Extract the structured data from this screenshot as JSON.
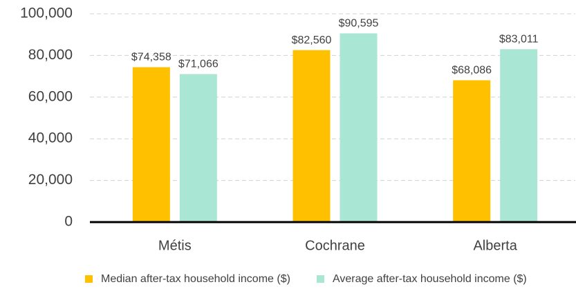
{
  "chart_data": {
    "type": "bar",
    "categories": [
      "Métis",
      "Cochrane",
      "Alberta"
    ],
    "series": [
      {
        "name": "Median after-tax household income ($)",
        "color": "#ffc000",
        "values": [
          74358,
          82560,
          68086
        ],
        "value_labels": [
          "$74,358",
          "$82,560",
          "$68,086"
        ]
      },
      {
        "name": "Average after-tax household income ($)",
        "color": "#a9e6d3",
        "values": [
          71066,
          90595,
          83011
        ],
        "value_labels": [
          "$71,066",
          "$90,595",
          "$83,011"
        ]
      }
    ],
    "ylim": [
      0,
      100000
    ],
    "yticks": [
      0,
      {
        "value": 20000,
        "label": "20,000"
      },
      {
        "value": 40000,
        "label": "40,000"
      },
      {
        "value": 60000,
        "label": "60,000"
      },
      {
        "value": 80000,
        "label": "80,000"
      },
      {
        "value": 100000,
        "label": "100,000"
      }
    ],
    "grid": true,
    "legend": "bottom"
  }
}
